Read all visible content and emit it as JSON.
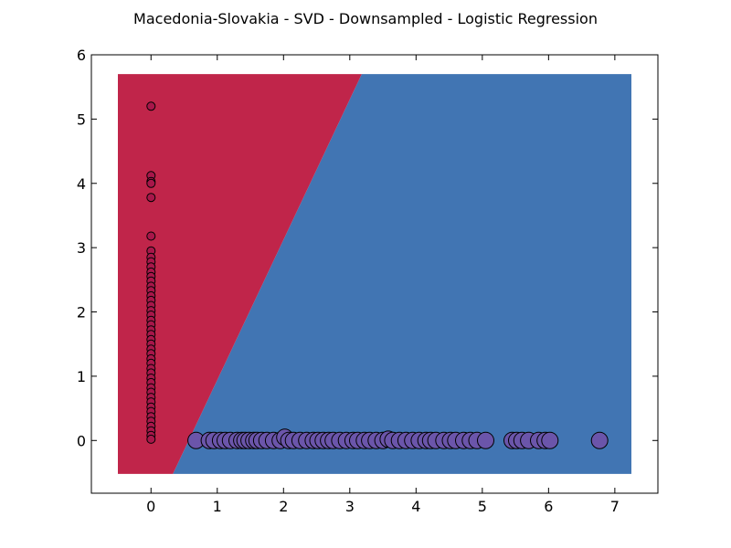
{
  "chart_data": {
    "type": "scatter",
    "title": "Macedonia-Slovakia - SVD - Downsampled - Logistic Regression",
    "xlabel": "",
    "ylabel": "",
    "xlim": [
      -0.9,
      7.65
    ],
    "ylim": [
      -0.82,
      6.0
    ],
    "xticks": [
      "0",
      "1",
      "2",
      "3",
      "4",
      "5",
      "6",
      "7"
    ],
    "yticks": [
      "0",
      "1",
      "2",
      "3",
      "4",
      "5",
      "6"
    ],
    "grid": false,
    "decision_regions": {
      "extent": {
        "x": [
          -0.5,
          7.25
        ],
        "y": [
          -0.52,
          5.7
        ]
      },
      "boundary": [
        [
          0.33,
          -0.52
        ],
        [
          3.18,
          5.7
        ]
      ],
      "left_color": "#c0254a",
      "right_color": "#4175b3"
    },
    "series": [
      {
        "color": "#a8174a",
        "marker_size": "small",
        "points": [
          [
            0.0,
            5.2
          ],
          [
            0.0,
            4.12
          ],
          [
            0.0,
            4.03
          ],
          [
            0.0,
            4.0
          ],
          [
            0.0,
            3.78
          ],
          [
            0.0,
            3.18
          ],
          [
            0.0,
            2.95
          ],
          [
            0.0,
            2.85
          ],
          [
            0.0,
            2.78
          ],
          [
            0.0,
            2.7
          ],
          [
            0.0,
            2.62
          ],
          [
            0.0,
            2.55
          ],
          [
            0.0,
            2.48
          ],
          [
            0.0,
            2.4
          ],
          [
            0.0,
            2.33
          ],
          [
            0.0,
            2.25
          ],
          [
            0.0,
            2.18
          ],
          [
            0.0,
            2.1
          ],
          [
            0.0,
            2.02
          ],
          [
            0.0,
            1.95
          ],
          [
            0.0,
            1.87
          ],
          [
            0.0,
            1.8
          ],
          [
            0.0,
            1.72
          ],
          [
            0.0,
            1.65
          ],
          [
            0.0,
            1.57
          ],
          [
            0.0,
            1.5
          ],
          [
            0.0,
            1.42
          ],
          [
            0.0,
            1.35
          ],
          [
            0.0,
            1.27
          ],
          [
            0.0,
            1.2
          ],
          [
            0.0,
            1.12
          ],
          [
            0.0,
            1.05
          ],
          [
            0.0,
            0.97
          ],
          [
            0.0,
            0.9
          ],
          [
            0.0,
            0.82
          ],
          [
            0.0,
            0.75
          ],
          [
            0.0,
            0.67
          ],
          [
            0.0,
            0.6
          ],
          [
            0.0,
            0.52
          ],
          [
            0.0,
            0.45
          ],
          [
            0.0,
            0.37
          ],
          [
            0.0,
            0.3
          ],
          [
            0.0,
            0.22
          ],
          [
            0.0,
            0.15
          ],
          [
            0.0,
            0.08
          ],
          [
            0.0,
            0.02
          ]
        ]
      },
      {
        "color": "#6b55aa",
        "marker_size": "large",
        "points": [
          [
            0.68,
            0.0
          ],
          [
            0.88,
            0.0
          ],
          [
            0.95,
            0.0
          ],
          [
            1.05,
            0.0
          ],
          [
            1.12,
            0.0
          ],
          [
            1.2,
            0.0
          ],
          [
            1.3,
            0.0
          ],
          [
            1.37,
            0.0
          ],
          [
            1.42,
            0.0
          ],
          [
            1.48,
            0.0
          ],
          [
            1.55,
            0.0
          ],
          [
            1.6,
            0.0
          ],
          [
            1.67,
            0.0
          ],
          [
            1.75,
            0.0
          ],
          [
            1.85,
            0.0
          ],
          [
            1.95,
            0.0
          ],
          [
            2.02,
            0.05
          ],
          [
            2.08,
            0.0
          ],
          [
            2.15,
            0.0
          ],
          [
            2.25,
            0.0
          ],
          [
            2.35,
            0.0
          ],
          [
            2.45,
            0.0
          ],
          [
            2.52,
            0.0
          ],
          [
            2.6,
            0.0
          ],
          [
            2.68,
            0.0
          ],
          [
            2.75,
            0.0
          ],
          [
            2.85,
            0.0
          ],
          [
            2.95,
            0.0
          ],
          [
            3.05,
            0.0
          ],
          [
            3.12,
            0.0
          ],
          [
            3.22,
            0.0
          ],
          [
            3.3,
            0.0
          ],
          [
            3.4,
            0.0
          ],
          [
            3.5,
            0.0
          ],
          [
            3.58,
            0.02
          ],
          [
            3.65,
            0.0
          ],
          [
            3.75,
            0.0
          ],
          [
            3.85,
            0.0
          ],
          [
            3.95,
            0.0
          ],
          [
            4.05,
            0.0
          ],
          [
            4.15,
            0.0
          ],
          [
            4.22,
            0.0
          ],
          [
            4.3,
            0.0
          ],
          [
            4.42,
            0.0
          ],
          [
            4.52,
            0.0
          ],
          [
            4.6,
            0.0
          ],
          [
            4.72,
            0.0
          ],
          [
            4.82,
            0.0
          ],
          [
            4.92,
            0.0
          ],
          [
            5.05,
            0.0
          ],
          [
            5.45,
            0.0
          ],
          [
            5.52,
            0.0
          ],
          [
            5.6,
            0.0
          ],
          [
            5.7,
            0.0
          ],
          [
            5.85,
            0.0
          ],
          [
            5.95,
            0.0
          ],
          [
            6.02,
            0.0
          ],
          [
            6.77,
            0.0
          ]
        ]
      }
    ]
  }
}
